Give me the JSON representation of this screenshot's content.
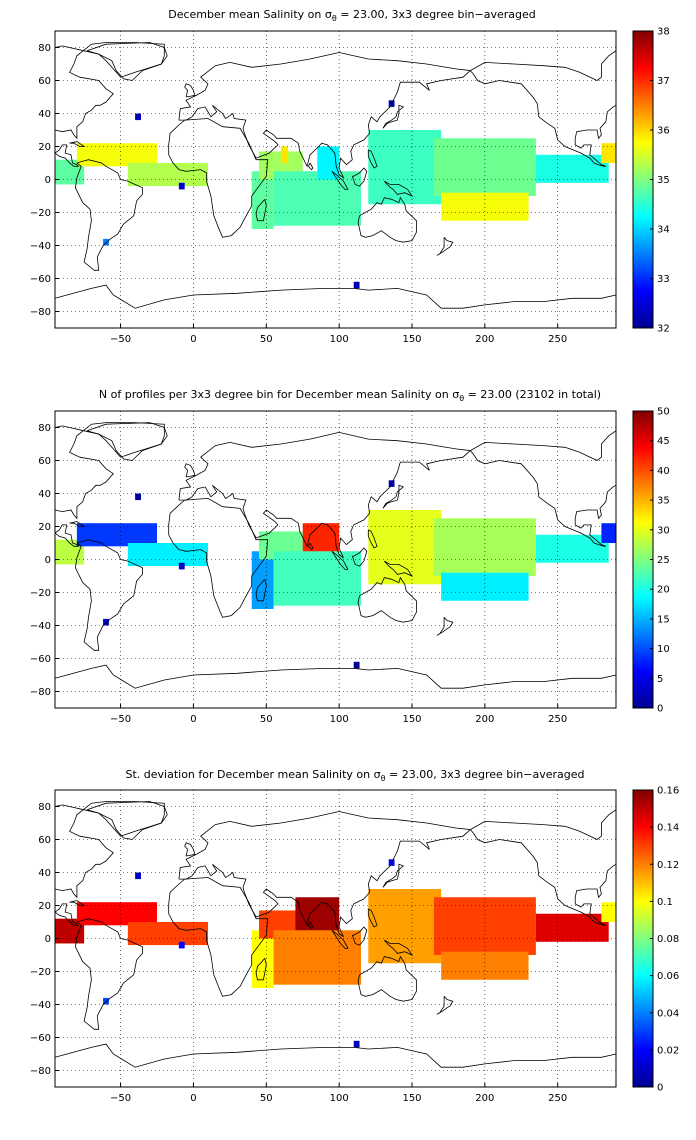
{
  "chart_data": [
    {
      "type": "heatmap",
      "title": "December mean Salinity on σθ = 23.00, 3x3 degree bin−averaged",
      "title_parts": {
        "before": "December mean Salinity on σ",
        "sub": "θ",
        "after": " = 23.00, 3x3 degree bin−averaged"
      },
      "xlim": [
        -95,
        290
      ],
      "ylim": [
        -90,
        90
      ],
      "xticks": [
        "−50",
        "0",
        "50",
        "100",
        "150",
        "200",
        "250"
      ],
      "yticks": [
        "80",
        "60",
        "40",
        "20",
        "0",
        "−20",
        "−40",
        "−60",
        "−80"
      ],
      "grid": true,
      "colorbar": {
        "min": 32,
        "max": 38,
        "ticks": [
          "32",
          "33",
          "34",
          "35",
          "36",
          "37",
          "38"
        ]
      },
      "regions": [
        {
          "x": [
            -95,
            -75
          ],
          "y": [
            -3,
            12
          ],
          "value": 34.8
        },
        {
          "x": [
            -80,
            -25
          ],
          "y": [
            8,
            22
          ],
          "value": 35.7
        },
        {
          "x": [
            -45,
            10
          ],
          "y": [
            -4,
            10
          ],
          "value": 35.3
        },
        {
          "x": [
            40,
            55
          ],
          "y": [
            -30,
            5
          ],
          "value": 34.8
        },
        {
          "x": [
            45,
            75
          ],
          "y": [
            0,
            17
          ],
          "value": 35.2
        },
        {
          "x": [
            60,
            65
          ],
          "y": [
            10,
            20
          ],
          "value": 35.9
        },
        {
          "x": [
            55,
            115
          ],
          "y": [
            -28,
            5
          ],
          "value": 34.7
        },
        {
          "x": [
            85,
            100
          ],
          "y": [
            0,
            20
          ],
          "value": 34.2
        },
        {
          "x": [
            120,
            170
          ],
          "y": [
            -15,
            30
          ],
          "value": 34.6
        },
        {
          "x": [
            165,
            235
          ],
          "y": [
            -10,
            25
          ],
          "value": 34.9
        },
        {
          "x": [
            170,
            230
          ],
          "y": [
            -25,
            -8
          ],
          "value": 35.7
        },
        {
          "x": [
            235,
            285
          ],
          "y": [
            -2,
            15
          ],
          "value": 34.4
        },
        {
          "x": [
            280,
            290
          ],
          "y": [
            10,
            22
          ],
          "value": 35.9
        },
        {
          "x": [
            -40,
            -36
          ],
          "y": [
            36,
            40
          ],
          "value": 32.3
        },
        {
          "x": [
            -62,
            -58
          ],
          "y": [
            -40,
            -36
          ],
          "value": 33.5
        },
        {
          "x": [
            -10,
            -6
          ],
          "y": [
            -6,
            -2
          ],
          "value": 32.5
        },
        {
          "x": [
            110,
            114
          ],
          "y": [
            -66,
            -62
          ],
          "value": 32.3
        },
        {
          "x": [
            134,
            138
          ],
          "y": [
            44,
            48
          ],
          "value": 32.3
        }
      ]
    },
    {
      "type": "heatmap",
      "title": "N of profiles per 3x3 degree bin for December mean Salinity on σθ = 23.00 (23102 in total)",
      "title_parts": {
        "before": "N of profiles per 3x3 degree bin for December mean Salinity on σ",
        "sub": "θ",
        "after": " = 23.00 (23102 in total)"
      },
      "xlim": [
        -95,
        290
      ],
      "ylim": [
        -90,
        90
      ],
      "xticks": [
        "−50",
        "0",
        "50",
        "100",
        "150",
        "200",
        "250"
      ],
      "yticks": [
        "80",
        "60",
        "40",
        "20",
        "0",
        "−20",
        "−40",
        "−60",
        "−80"
      ],
      "grid": true,
      "colorbar": {
        "min": 0,
        "max": 50,
        "ticks": [
          "0",
          "5",
          "10",
          "15",
          "20",
          "25",
          "30",
          "35",
          "40",
          "45",
          "50"
        ]
      },
      "regions": [
        {
          "x": [
            -95,
            -75
          ],
          "y": [
            -3,
            12
          ],
          "value": 28
        },
        {
          "x": [
            -80,
            -25
          ],
          "y": [
            8,
            22
          ],
          "value": 9
        },
        {
          "x": [
            -45,
            10
          ],
          "y": [
            -4,
            10
          ],
          "value": 18
        },
        {
          "x": [
            40,
            55
          ],
          "y": [
            -30,
            5
          ],
          "value": 14
        },
        {
          "x": [
            45,
            75
          ],
          "y": [
            0,
            17
          ],
          "value": 24
        },
        {
          "x": [
            75,
            100
          ],
          "y": [
            -5,
            22
          ],
          "value": 42
        },
        {
          "x": [
            55,
            115
          ],
          "y": [
            -28,
            5
          ],
          "value": 22
        },
        {
          "x": [
            120,
            170
          ],
          "y": [
            -15,
            30
          ],
          "value": 30
        },
        {
          "x": [
            165,
            235
          ],
          "y": [
            -10,
            25
          ],
          "value": 27
        },
        {
          "x": [
            170,
            230
          ],
          "y": [
            -25,
            -8
          ],
          "value": 18
        },
        {
          "x": [
            235,
            285
          ],
          "y": [
            -2,
            15
          ],
          "value": 20
        },
        {
          "x": [
            280,
            290
          ],
          "y": [
            10,
            22
          ],
          "value": 8
        },
        {
          "x": [
            -40,
            -36
          ],
          "y": [
            36,
            40
          ],
          "value": 2
        },
        {
          "x": [
            -62,
            -58
          ],
          "y": [
            -40,
            -36
          ],
          "value": 4
        },
        {
          "x": [
            -10,
            -6
          ],
          "y": [
            -6,
            -2
          ],
          "value": 3
        },
        {
          "x": [
            110,
            114
          ],
          "y": [
            -66,
            -62
          ],
          "value": 1
        },
        {
          "x": [
            134,
            138
          ],
          "y": [
            44,
            48
          ],
          "value": 3
        }
      ]
    },
    {
      "type": "heatmap",
      "title": "St. deviation for December mean Salinity on σθ = 23.00, 3x3 degree bin−averaged",
      "title_parts": {
        "before": "St. deviation for December mean Salinity on σ",
        "sub": "θ",
        "after": " = 23.00, 3x3 degree bin−averaged"
      },
      "xlim": [
        -95,
        290
      ],
      "ylim": [
        -90,
        90
      ],
      "xticks": [
        "−50",
        "0",
        "50",
        "100",
        "150",
        "200",
        "250"
      ],
      "yticks": [
        "80",
        "60",
        "40",
        "20",
        "0",
        "−20",
        "−40",
        "−60",
        "−80"
      ],
      "grid": true,
      "colorbar": {
        "min": 0,
        "max": 0.16,
        "ticks": [
          "0",
          "0.02",
          "0.04",
          "0.06",
          "0.08",
          "0.1",
          "0.12",
          "0.14",
          "0.16"
        ]
      },
      "regions": [
        {
          "x": [
            -95,
            -75
          ],
          "y": [
            -3,
            12
          ],
          "value": 0.15
        },
        {
          "x": [
            -80,
            -25
          ],
          "y": [
            8,
            22
          ],
          "value": 0.14
        },
        {
          "x": [
            -45,
            10
          ],
          "y": [
            -4,
            10
          ],
          "value": 0.13
        },
        {
          "x": [
            40,
            55
          ],
          "y": [
            -30,
            5
          ],
          "value": 0.1
        },
        {
          "x": [
            45,
            75
          ],
          "y": [
            0,
            17
          ],
          "value": 0.13
        },
        {
          "x": [
            70,
            100
          ],
          "y": [
            -20,
            25
          ],
          "value": 0.155
        },
        {
          "x": [
            55,
            115
          ],
          "y": [
            -28,
            5
          ],
          "value": 0.12
        },
        {
          "x": [
            120,
            170
          ],
          "y": [
            -15,
            30
          ],
          "value": 0.115
        },
        {
          "x": [
            165,
            235
          ],
          "y": [
            -10,
            25
          ],
          "value": 0.13
        },
        {
          "x": [
            170,
            230
          ],
          "y": [
            -25,
            -8
          ],
          "value": 0.12
        },
        {
          "x": [
            235,
            285
          ],
          "y": [
            -2,
            15
          ],
          "value": 0.145
        },
        {
          "x": [
            280,
            290
          ],
          "y": [
            10,
            22
          ],
          "value": 0.1
        },
        {
          "x": [
            -40,
            -36
          ],
          "y": [
            36,
            40
          ],
          "value": 0.01
        },
        {
          "x": [
            -62,
            -58
          ],
          "y": [
            -40,
            -36
          ],
          "value": 0.03
        },
        {
          "x": [
            -10,
            -6
          ],
          "y": [
            -6,
            -2
          ],
          "value": 0.02
        },
        {
          "x": [
            110,
            114
          ],
          "y": [
            -66,
            -62
          ],
          "value": 0.01
        },
        {
          "x": [
            134,
            138
          ],
          "y": [
            44,
            48
          ],
          "value": 0.02
        }
      ]
    }
  ]
}
